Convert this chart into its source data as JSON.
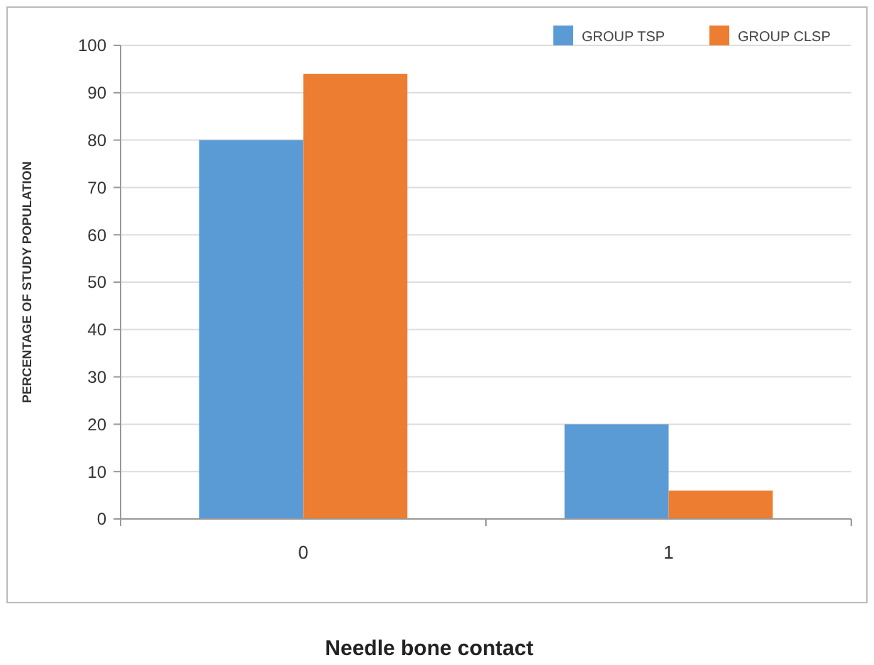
{
  "chart_data": {
    "type": "bar",
    "xlabel": "Needle bone contact",
    "ylabel": "PERCENTAGE OF STUDY POPULATION",
    "categories": [
      "0",
      "1"
    ],
    "series": [
      {
        "name": "GROUP TSP",
        "color": "#5b9bd5",
        "values": [
          80,
          20
        ]
      },
      {
        "name": "GROUP CLSP",
        "color": "#ed7d31",
        "values": [
          94,
          6
        ]
      }
    ],
    "ylim": [
      0,
      100
    ],
    "yticks": [
      0,
      10,
      20,
      30,
      40,
      50,
      60,
      70,
      80,
      90,
      100
    ],
    "grid": "y",
    "legend": "top right"
  }
}
